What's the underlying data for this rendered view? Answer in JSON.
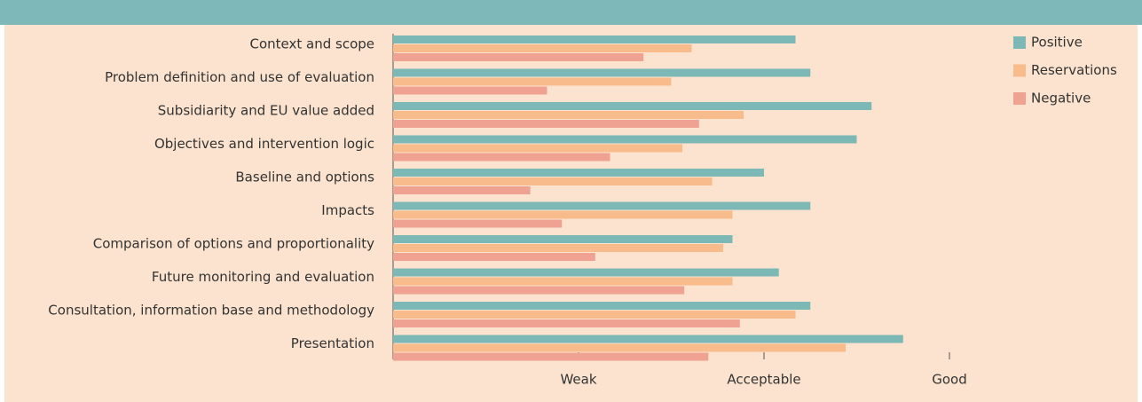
{
  "chart_data": {
    "type": "hbar",
    "categories": [
      "Context and scope",
      "Problem definition and use of evaluation",
      "Subsidiarity and EU value added",
      "Objectives and intervention logic",
      "Baseline and options",
      "Impacts",
      "Comparison of options and proportionality",
      "Future monitoring and evaluation",
      "Consultation, information base and methodology",
      "Presentation"
    ],
    "series": [
      {
        "name": "Positive",
        "color": "#7cb8b6",
        "values": [
          2.17,
          2.25,
          2.58,
          2.5,
          2.0,
          2.25,
          1.83,
          2.08,
          2.25,
          2.75
        ]
      },
      {
        "name": "Reservations",
        "color": "#f7bb8c",
        "values": [
          1.61,
          1.5,
          1.89,
          1.56,
          1.72,
          1.83,
          1.78,
          1.83,
          2.17,
          2.44
        ]
      },
      {
        "name": "Negative",
        "color": "#f0a292",
        "values": [
          1.35,
          0.83,
          1.65,
          1.17,
          0.74,
          0.91,
          1.09,
          1.57,
          1.87,
          1.7
        ]
      }
    ],
    "xlim": [
      0,
      3
    ],
    "xticks": [
      {
        "value": 1,
        "label": "Weak"
      },
      {
        "value": 2,
        "label": "Acceptable"
      },
      {
        "value": 3,
        "label": "Good"
      }
    ],
    "legend": "top-right"
  }
}
